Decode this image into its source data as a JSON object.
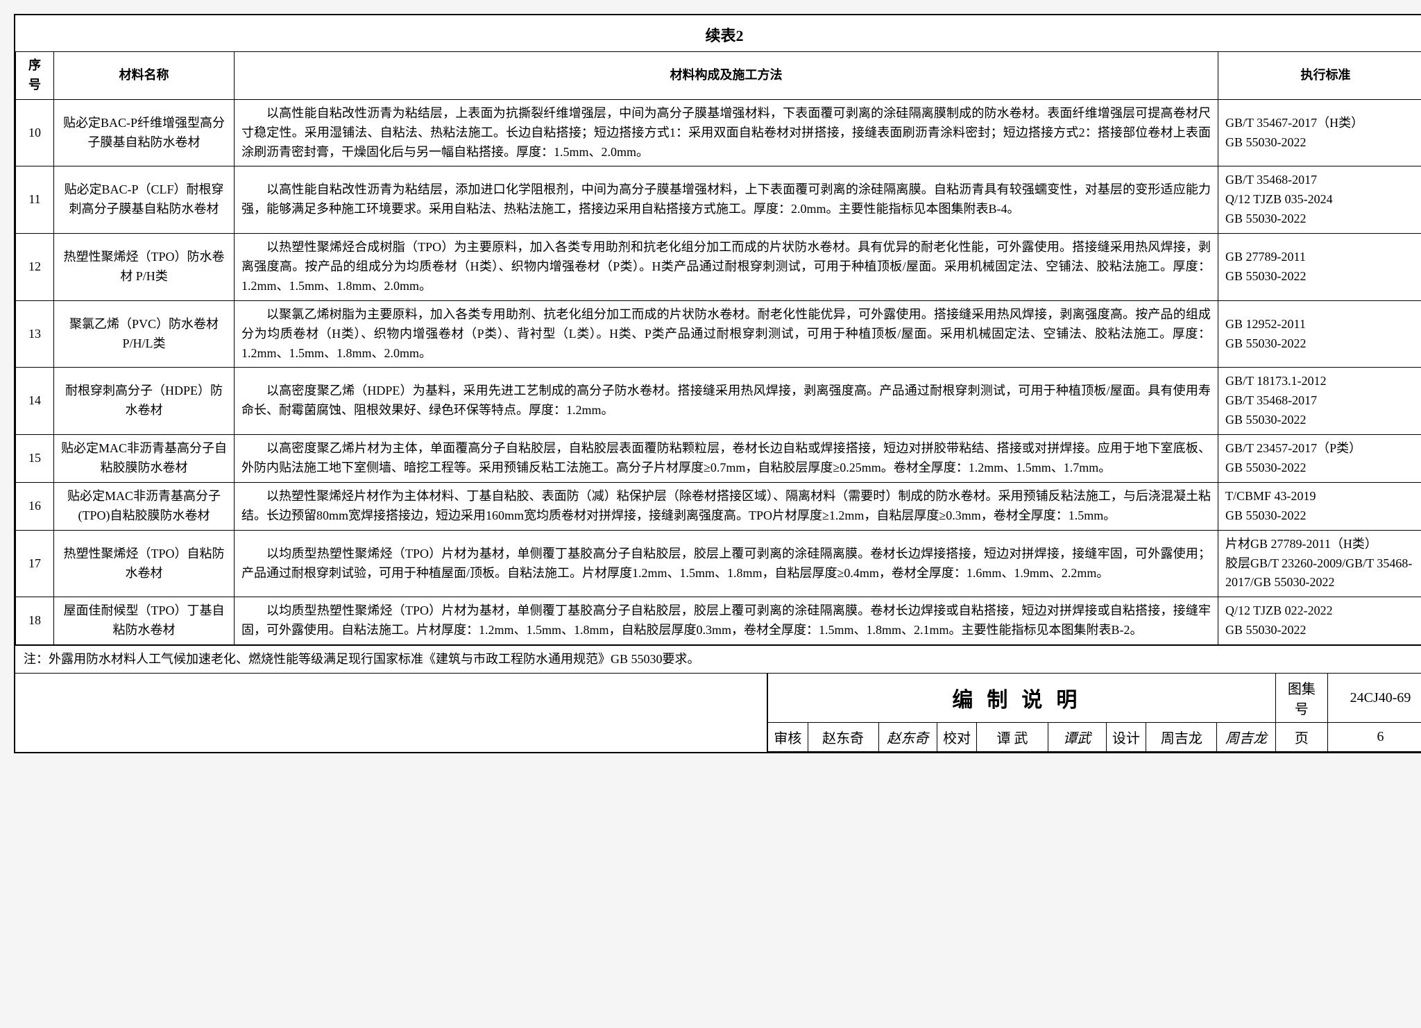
{
  "title": "续表2",
  "columns": [
    "序号",
    "材料名称",
    "材料构成及施工方法",
    "执行标准"
  ],
  "rows": [
    {
      "idx": "10",
      "name": "贴必定BAC-P纤维增强型高分子膜基自粘防水卷材",
      "body": "以高性能自粘改性沥青为粘结层，上表面为抗撕裂纤维增强层，中间为高分子膜基增强材料，下表面覆可剥离的涂硅隔离膜制成的防水卷材。表面纤维增强层可提高卷材尺寸稳定性。采用湿铺法、自粘法、热粘法施工。长边自粘搭接；短边搭接方式1：采用双面自粘卷材对拼搭接，接缝表面刷沥青涂料密封；短边搭接方式2：搭接部位卷材上表面涂刷沥青密封膏，干燥固化后与另一幅自粘搭接。厚度：1.5mm、2.0mm。",
      "std": "GB/T 35467-2017（H类）\nGB 55030-2022"
    },
    {
      "idx": "11",
      "name": "贴必定BAC-P（CLF）耐根穿刺高分子膜基自粘防水卷材",
      "body": "以高性能自粘改性沥青为粘结层，添加进口化学阻根剂，中间为高分子膜基增强材料，上下表面覆可剥离的涂硅隔离膜。自粘沥青具有较强蠕变性，对基层的变形适应能力强，能够满足多种施工环境要求。采用自粘法、热粘法施工，搭接边采用自粘搭接方式施工。厚度：2.0mm。主要性能指标见本图集附表B-4。",
      "std": "GB/T 35468-2017\nQ/12 TJZB 035-2024\nGB 55030-2022"
    },
    {
      "idx": "12",
      "name": "热塑性聚烯烃（TPO）防水卷材 P/H类",
      "body": "以热塑性聚烯烃合成树脂（TPO）为主要原料，加入各类专用助剂和抗老化组分加工而成的片状防水卷材。具有优异的耐老化性能，可外露使用。搭接缝采用热风焊接，剥离强度高。按产品的组成分为均质卷材（H类）、织物内增强卷材（P类）。H类产品通过耐根穿刺测试，可用于种植顶板/屋面。采用机械固定法、空铺法、胶粘法施工。厚度：1.2mm、1.5mm、1.8mm、2.0mm。",
      "std": "GB 27789-2011\nGB 55030-2022"
    },
    {
      "idx": "13",
      "name": "聚氯乙烯（PVC）防水卷材 P/H/L类",
      "body": "以聚氯乙烯树脂为主要原料，加入各类专用助剂、抗老化组分加工而成的片状防水卷材。耐老化性能优异，可外露使用。搭接缝采用热风焊接，剥离强度高。按产品的组成分为均质卷材（H类）、织物内增强卷材（P类）、背衬型（L类）。H类、P类产品通过耐根穿刺测试，可用于种植顶板/屋面。采用机械固定法、空铺法、胶粘法施工。厚度：1.2mm、1.5mm、1.8mm、2.0mm。",
      "std": "GB 12952-2011\nGB 55030-2022"
    },
    {
      "idx": "14",
      "name": "耐根穿刺高分子（HDPE）防水卷材",
      "body": "以高密度聚乙烯（HDPE）为基料，采用先进工艺制成的高分子防水卷材。搭接缝采用热风焊接，剥离强度高。产品通过耐根穿刺测试，可用于种植顶板/屋面。具有使用寿命长、耐霉菌腐蚀、阻根效果好、绿色环保等特点。厚度：1.2mm。",
      "std": "GB/T 18173.1-2012\nGB/T 35468-2017\nGB 55030-2022"
    },
    {
      "idx": "15",
      "name": "贴必定MAC非沥青基高分子自粘胶膜防水卷材",
      "body": "以高密度聚乙烯片材为主体，单面覆高分子自粘胶层，自粘胶层表面覆防粘颗粒层，卷材长边自粘或焊接搭接，短边对拼胶带粘结、搭接或对拼焊接。应用于地下室底板、外防内贴法施工地下室侧墙、暗挖工程等。采用预铺反粘工法施工。高分子片材厚度≥0.7mm，自粘胶层厚度≥0.25mm。卷材全厚度：1.2mm、1.5mm、1.7mm。",
      "std": "GB/T 23457-2017（P类）\nGB 55030-2022"
    },
    {
      "idx": "16",
      "name": "贴必定MAC非沥青基高分子(TPO)自粘胶膜防水卷材",
      "body": "以热塑性聚烯烃片材作为主体材料、丁基自粘胶、表面防（减）粘保护层（除卷材搭接区域）、隔离材料（需要时）制成的防水卷材。采用预铺反粘法施工，与后浇混凝土粘结。长边预留80mm宽焊接搭接边，短边采用160mm宽均质卷材对拼焊接，接缝剥离强度高。TPO片材厚度≥1.2mm，自粘层厚度≥0.3mm，卷材全厚度：1.5mm。",
      "std": "T/CBMF 43-2019\nGB 55030-2022"
    },
    {
      "idx": "17",
      "name": "热塑性聚烯烃（TPO）自粘防水卷材",
      "body": "以均质型热塑性聚烯烃（TPO）片材为基材，单侧覆丁基胶高分子自粘胶层，胶层上覆可剥离的涂硅隔离膜。卷材长边焊接搭接，短边对拼焊接，接缝牢固，可外露使用；产品通过耐根穿刺试验，可用于种植屋面/顶板。自粘法施工。片材厚度1.2mm、1.5mm、1.8mm，自粘层厚度≥0.4mm，卷材全厚度：1.6mm、1.9mm、2.2mm。",
      "std": "片材GB 27789-2011（H类）\n胶层GB/T 23260-2009/GB/T 35468-2017/GB 55030-2022"
    },
    {
      "idx": "18",
      "name": "屋面佳耐候型（TPO）丁基自粘防水卷材",
      "body": "以均质型热塑性聚烯烃（TPO）片材为基材，单侧覆丁基胶高分子自粘胶层，胶层上覆可剥离的涂硅隔离膜。卷材长边焊接或自粘搭接，短边对拼焊接或自粘搭接，接缝牢固，可外露使用。自粘法施工。片材厚度：1.2mm、1.5mm、1.8mm，自粘胶层厚度0.3mm，卷材全厚度：1.5mm、1.8mm、2.1mm。主要性能指标见本图集附表B-2。",
      "std": "Q/12 TJZB 022-2022\nGB 55030-2022"
    }
  ],
  "note": "注：外露用防水材料人工气候加速老化、燃烧性能等级满足现行国家标准《建筑与市政工程防水通用规范》GB 55030要求。",
  "footer": {
    "heading": "编制说明",
    "doc_no_label": "图集号",
    "doc_no": "24CJ40-69",
    "page_label": "页",
    "page_no": "6",
    "review_label": "审核",
    "review_name": "赵东奇",
    "review_sig": "赵东奇",
    "check_label": "校对",
    "check_name": "谭 武",
    "check_sig": "谭武",
    "design_label": "设计",
    "design_name": "周吉龙",
    "design_sig": "周吉龙"
  }
}
